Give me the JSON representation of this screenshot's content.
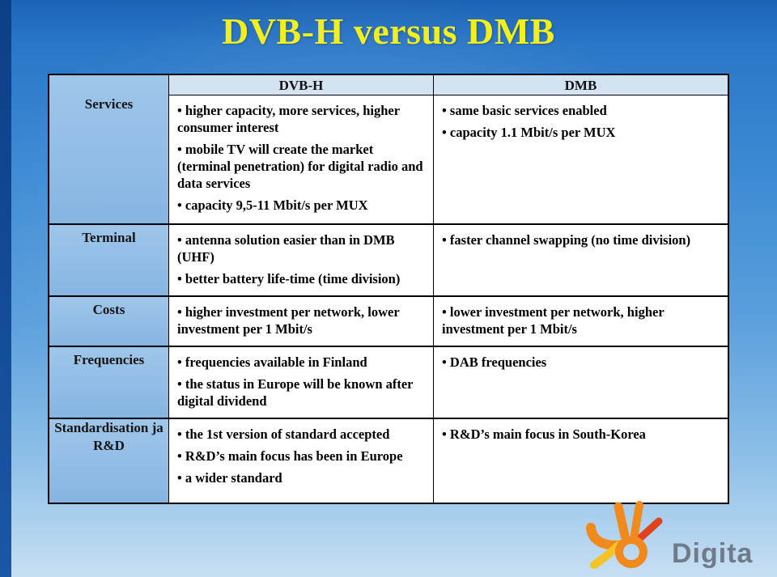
{
  "slide": {
    "title": "DVB-H versus DMB"
  },
  "table": {
    "columns": [
      "DVB-H",
      "DMB"
    ],
    "rows": [
      {
        "label": "Services",
        "dvbh": [
          "higher capacity, more services, higher consumer interest",
          "mobile TV will create the market (terminal penetration) for digital radio and data services",
          "capacity 9,5-11 Mbit/s per MUX"
        ],
        "dmb": [
          "same basic services enabled",
          "capacity 1.1 Mbit/s per MUX"
        ]
      },
      {
        "label": "Terminal",
        "dvbh": [
          "antenna solution easier than in DMB (UHF)",
          "better battery life-time (time division)"
        ],
        "dmb": [
          "faster channel swapping (no time division)"
        ]
      },
      {
        "label": "Costs",
        "dvbh": [
          "higher investment per network, lower investment per 1 Mbit/s"
        ],
        "dmb": [
          "lower investment per network, higher investment per 1 Mbit/s"
        ]
      },
      {
        "label": "Frequencies",
        "dvbh": [
          "frequencies available in Finland",
          "the status in Europe will be known after digital dividend"
        ],
        "dmb": [
          "DAB frequencies"
        ]
      },
      {
        "label": "Standardisation ja R&D",
        "dvbh": [
          "the 1st version of standard accepted",
          "R&D’s main focus has been in Europe",
          "a wider standard"
        ],
        "dmb": [
          "R&D’s main focus in South-Korea"
        ]
      }
    ]
  },
  "logo": {
    "text": "Digita",
    "colors": {
      "orange": "#f08a1c",
      "yellow": "#f6c325",
      "red": "#e0431b",
      "gray": "#6f7b88"
    }
  },
  "colors": {
    "title": "#f2ef1c",
    "background": "#2a77c8",
    "label_cell": "#9fc6ea",
    "header_cell": "#d4e3f2"
  }
}
